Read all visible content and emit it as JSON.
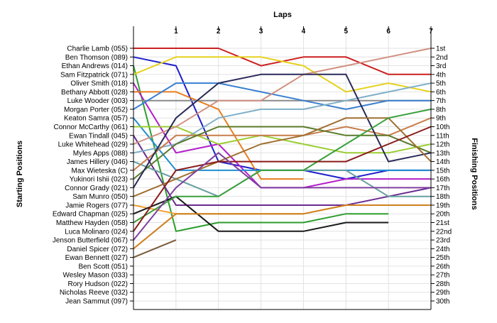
{
  "chart_data": {
    "type": "line",
    "title": "",
    "xlabel": "Laps",
    "ylabel_left": "Starting Positions",
    "ylabel_right": "Finishing Positions",
    "x": [
      0,
      1,
      2,
      3,
      4,
      5,
      6,
      7
    ],
    "x_tick_labels": [
      "1",
      "2",
      "3",
      "4",
      "5",
      "6",
      "7"
    ],
    "ylim": [
      1,
      30
    ],
    "y_inverted": true,
    "grid": true,
    "finishing_positions": [
      "1st",
      "2nd",
      "3rd",
      "4th",
      "5th",
      "6th",
      "7th",
      "8th",
      "9th",
      "10th",
      "11th",
      "12th",
      "13th",
      "14th",
      "15th",
      "16th",
      "17th",
      "18th",
      "19th",
      "20th",
      "21st",
      "22nd",
      "23rd",
      "24th",
      "25th",
      "26th",
      "27th",
      "28th",
      "29th",
      "30th"
    ],
    "series": [
      {
        "name": "Charlie Lamb (055)",
        "color": "#cc1f1f",
        "values": [
          1,
          1,
          1,
          3,
          2,
          2,
          4,
          4
        ]
      },
      {
        "name": "Ben Thomson (089)",
        "color": "#1f1fcc",
        "values": [
          2,
          3,
          14,
          15,
          15,
          16,
          15,
          15
        ]
      },
      {
        "name": "Ethan Andrews (014)",
        "color": "#2e9e2e",
        "values": [
          3,
          22,
          21,
          21,
          21,
          20,
          20,
          null
        ]
      },
      {
        "name": "Sam Fitzpatrick (071)",
        "color": "#e6d21f",
        "values": [
          4,
          2,
          2,
          2,
          3,
          6,
          5,
          6
        ]
      },
      {
        "name": "Oliver Smith (018)",
        "color": "#b31fc9",
        "values": [
          5,
          13,
          12,
          17,
          17,
          16,
          16,
          16
        ]
      },
      {
        "name": "Bethany Abbott (028)",
        "color": "#e87d1f",
        "values": [
          6,
          6,
          8,
          16,
          16,
          null,
          null,
          null
        ]
      },
      {
        "name": "Luke Wooder (003)",
        "color": "#8a8a8a",
        "values": [
          7,
          7,
          7,
          7,
          7,
          7,
          7,
          7
        ]
      },
      {
        "name": "Morgan Porter (052)",
        "color": "#3a7fd0",
        "values": [
          8,
          5,
          5,
          6,
          7,
          8,
          7,
          7
        ]
      },
      {
        "name": "Keaton Samra (057)",
        "color": "#1f8ed0",
        "values": [
          9,
          15,
          15,
          15,
          15,
          15,
          15,
          15
        ]
      },
      {
        "name": "Connor McCarthy (061)",
        "color": "#9acd32",
        "values": [
          10,
          10,
          12,
          11,
          12,
          13,
          13,
          12
        ]
      },
      {
        "name": "Ewan Tindall (045)",
        "color": "#6b2b8f",
        "values": [
          11,
          19,
          19,
          19,
          19,
          19,
          18,
          17
        ]
      },
      {
        "name": "Luke Whitehead (029)",
        "color": "#d09080",
        "values": [
          12,
          10,
          7,
          7,
          4,
          3,
          2,
          1
        ]
      },
      {
        "name": "Myles Apps (088)",
        "color": "#7fb0c8",
        "values": [
          13,
          12,
          9,
          8,
          8,
          7,
          6,
          5
        ]
      },
      {
        "name": "James Hillery (046)",
        "color": "#66a0a0",
        "values": [
          14,
          16,
          18,
          15,
          15,
          15,
          18,
          18
        ]
      },
      {
        "name": "Max Wieteska (C)",
        "color": "#c87d4a",
        "values": [
          15,
          11,
          11,
          11,
          11,
          10,
          11,
          9
        ]
      },
      {
        "name": "Yukinori Ishii (023)",
        "color": "#5a7a2a",
        "values": [
          16,
          12,
          10,
          10,
          10,
          11,
          11,
          13
        ]
      },
      {
        "name": "Connor Grady (021)",
        "color": "#2a2a5a",
        "values": [
          17,
          9,
          5,
          4,
          4,
          4,
          14,
          13
        ]
      },
      {
        "name": "Sam Munro (050)",
        "color": "#a07030",
        "values": [
          18,
          16,
          14,
          12,
          11,
          9,
          9,
          14
        ]
      },
      {
        "name": "Jamie Rogers (077)",
        "color": "#f0a030",
        "values": [
          19,
          20,
          20,
          20,
          20,
          19,
          19,
          19
        ]
      },
      {
        "name": "Edward Chapman (025)",
        "color": "#1a1a1a",
        "values": [
          20,
          18,
          22,
          22,
          22,
          21,
          21,
          null
        ]
      },
      {
        "name": "Matthew Hayden (058)",
        "color": "#3aa03a",
        "values": [
          21,
          18,
          18,
          15,
          15,
          12,
          9,
          8
        ]
      },
      {
        "name": "Luca Molinaro (024)",
        "color": "#8b1a1a",
        "values": [
          22,
          15,
          14,
          14,
          14,
          14,
          12,
          10
        ]
      },
      {
        "name": "Jenson Butterfield (067)",
        "color": "#8040a0",
        "values": [
          23,
          17,
          13,
          17,
          17,
          17,
          17,
          17
        ]
      },
      {
        "name": "Daniel Spicer (072)",
        "color": "#d08020",
        "values": [
          24,
          20,
          20,
          20,
          20,
          19,
          19,
          19
        ]
      },
      {
        "name": "Ewan Bennett (027)",
        "color": "#7a5a3a",
        "values": [
          25,
          23,
          null,
          null,
          null,
          null,
          null,
          null
        ]
      },
      {
        "name": "Ben Scott (051)",
        "color": "#888888",
        "values": [
          26,
          null,
          null,
          null,
          null,
          null,
          null,
          null
        ]
      },
      {
        "name": "Wesley Mason (033)",
        "color": "#888888",
        "values": [
          27,
          null,
          null,
          null,
          null,
          null,
          null,
          null
        ]
      },
      {
        "name": "Rory Hudson (022)",
        "color": "#888888",
        "values": [
          28,
          null,
          null,
          null,
          null,
          null,
          null,
          null
        ]
      },
      {
        "name": "Nicholas Reeve (032)",
        "color": "#888888",
        "values": [
          29,
          null,
          null,
          null,
          null,
          null,
          null,
          null
        ]
      },
      {
        "name": "Jean Sammut (097)",
        "color": "#888888",
        "values": [
          30,
          null,
          null,
          null,
          null,
          null,
          null,
          null
        ]
      }
    ]
  }
}
